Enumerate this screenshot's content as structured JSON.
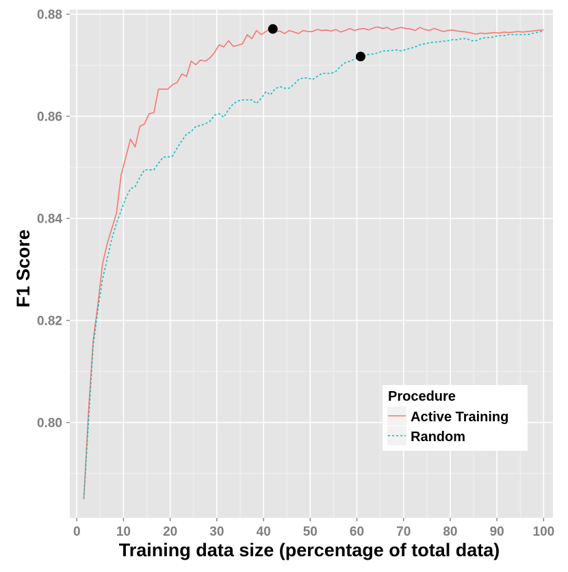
{
  "chart_data": {
    "type": "line",
    "xlabel": "Training data size (percentage of total data)",
    "ylabel": "F1 Score",
    "xlim": [
      -1.5,
      102
    ],
    "ylim": [
      0.7813,
      0.8809
    ],
    "x_ticks": [
      0,
      10,
      20,
      30,
      40,
      50,
      60,
      70,
      80,
      90,
      100
    ],
    "x_tick_labels": [
      "0",
      "10",
      "20",
      "30",
      "40",
      "50",
      "60",
      "70",
      "80",
      "90",
      "100"
    ],
    "y_ticks": [
      0.8,
      0.82,
      0.84,
      0.86,
      0.88
    ],
    "y_tick_labels": [
      "0.80",
      "0.82",
      "0.84",
      "0.86",
      "0.88"
    ],
    "grid": true,
    "panel_background": "#e5e5e5",
    "grid_color": "#ffffff",
    "legend": {
      "title": "Procedure",
      "position": "bottom-right"
    },
    "series": [
      {
        "name": "Active Training",
        "color": "#f8766d",
        "dash": "solid",
        "x": [
          1.5,
          2.5,
          3.5,
          4.5,
          5.5,
          6.5,
          7.5,
          8.5,
          9.5,
          10.5,
          11.5,
          12.5,
          13.5,
          14.5,
          15.5,
          16.5,
          17.5,
          18.5,
          19.5,
          20.5,
          21.5,
          22.5,
          23.5,
          24.5,
          25.5,
          26.5,
          27.5,
          28.5,
          29.5,
          30.5,
          31.5,
          32.5,
          33.5,
          34.5,
          35.5,
          36.5,
          37.5,
          38.5,
          39.5,
          40.5,
          41.5,
          42.5,
          43.5,
          44.5,
          45.5,
          46.5,
          47.5,
          48.5,
          49.5,
          50.5,
          51.5,
          52.5,
          53.5,
          54.5,
          55.5,
          56.5,
          57.5,
          58.5,
          59.5,
          60.5,
          61.5,
          62.5,
          63.5,
          64.5,
          65.5,
          66.5,
          67.5,
          68.5,
          69.5,
          70.5,
          71.5,
          72.5,
          73.5,
          74.5,
          75.5,
          76.5,
          77.5,
          78.5,
          79.5,
          80.5,
          81.5,
          82.5,
          83.5,
          84.5,
          85.5,
          86.5,
          87.5,
          88.5,
          89.5,
          90.5,
          91.5,
          92.5,
          93.5,
          94.5,
          95.5,
          96.5,
          97.5,
          98.5,
          99.5,
          100
        ],
        "y": [
          0.785,
          0.802,
          0.816,
          0.823,
          0.831,
          0.835,
          0.838,
          0.841,
          0.8485,
          0.852,
          0.8555,
          0.854,
          0.858,
          0.8585,
          0.8605,
          0.8607,
          0.8653,
          0.8653,
          0.8653,
          0.8662,
          0.8666,
          0.8683,
          0.8678,
          0.8708,
          0.8701,
          0.871,
          0.8708,
          0.8714,
          0.8725,
          0.874,
          0.8736,
          0.8748,
          0.8737,
          0.8739,
          0.8742,
          0.876,
          0.8752,
          0.8768,
          0.876,
          0.8766,
          0.8772,
          0.8766,
          0.8767,
          0.8762,
          0.8768,
          0.8765,
          0.8762,
          0.8768,
          0.8766,
          0.8766,
          0.877,
          0.8768,
          0.8769,
          0.8767,
          0.877,
          0.8765,
          0.8768,
          0.8772,
          0.8768,
          0.8771,
          0.8772,
          0.8769,
          0.8773,
          0.8775,
          0.8772,
          0.8774,
          0.8769,
          0.8772,
          0.8774,
          0.8772,
          0.8771,
          0.8768,
          0.8774,
          0.877,
          0.8768,
          0.8772,
          0.8769,
          0.8766,
          0.8768,
          0.8769,
          0.8767,
          0.8766,
          0.8765,
          0.8763,
          0.8761,
          0.8763,
          0.8762,
          0.8763,
          0.8764,
          0.8763,
          0.8765,
          0.8764,
          0.8765,
          0.8766,
          0.8765,
          0.8766,
          0.8767,
          0.8768,
          0.8769,
          0.8769
        ]
      },
      {
        "name": "Random",
        "color": "#00bfc4",
        "dash": "dotted",
        "x": [
          1.5,
          2.5,
          3.5,
          4.5,
          5.5,
          6.5,
          7.5,
          8.5,
          9.5,
          10.5,
          11.5,
          12.5,
          13.5,
          14.5,
          15.5,
          16.5,
          17.5,
          18.5,
          19.5,
          20.5,
          21.5,
          22.5,
          23.5,
          24.5,
          25.5,
          26.5,
          27.5,
          28.5,
          29.5,
          30.5,
          31.5,
          32.5,
          33.5,
          34.5,
          35.5,
          36.5,
          37.5,
          38.5,
          39.5,
          40.5,
          41.5,
          42.5,
          43.5,
          44.5,
          45.5,
          46.5,
          47.5,
          48.5,
          49.5,
          50.5,
          51.5,
          52.5,
          53.5,
          54.5,
          55.5,
          56.5,
          57.5,
          58.5,
          59.5,
          60.5,
          61.5,
          62.5,
          63.5,
          64.5,
          65.5,
          66.5,
          67.5,
          68.5,
          69.5,
          70.5,
          71.5,
          72.5,
          73.5,
          74.5,
          75.5,
          76.5,
          77.5,
          78.5,
          79.5,
          80.5,
          81.5,
          82.5,
          83.5,
          84.5,
          85.5,
          86.5,
          87.5,
          88.5,
          89.5,
          90.5,
          91.5,
          92.5,
          93.5,
          94.5,
          95.5,
          96.5,
          97.5,
          98.5,
          99.5,
          100
        ],
        "y": [
          0.785,
          0.8,
          0.815,
          0.822,
          0.828,
          0.832,
          0.836,
          0.839,
          0.8415,
          0.844,
          0.8458,
          0.8462,
          0.848,
          0.8495,
          0.8495,
          0.8495,
          0.8508,
          0.852,
          0.852,
          0.8522,
          0.8538,
          0.8552,
          0.8565,
          0.857,
          0.858,
          0.8582,
          0.8585,
          0.859,
          0.8602,
          0.8605,
          0.8598,
          0.8613,
          0.8624,
          0.863,
          0.8632,
          0.8632,
          0.8632,
          0.8625,
          0.8635,
          0.8648,
          0.8642,
          0.8654,
          0.8658,
          0.8655,
          0.8655,
          0.8662,
          0.8672,
          0.8675,
          0.8675,
          0.8672,
          0.8678,
          0.8684,
          0.8684,
          0.8684,
          0.8688,
          0.8698,
          0.8705,
          0.8708,
          0.8712,
          0.8715,
          0.8718,
          0.8721,
          0.8722,
          0.8724,
          0.8728,
          0.8728,
          0.8729,
          0.873,
          0.8728,
          0.8731,
          0.8733,
          0.8736,
          0.874,
          0.8742,
          0.8744,
          0.8745,
          0.8746,
          0.8747,
          0.8748,
          0.875,
          0.875,
          0.8752,
          0.8752,
          0.8748,
          0.8748,
          0.8752,
          0.8754,
          0.8754,
          0.8756,
          0.8758,
          0.8758,
          0.876,
          0.876,
          0.876,
          0.876,
          0.876,
          0.8762,
          0.8764,
          0.8766,
          0.8768
        ]
      }
    ],
    "markers": [
      {
        "x": 42,
        "y": 0.8771,
        "color": "#000000"
      },
      {
        "x": 60.8,
        "y": 0.8717,
        "color": "#000000"
      }
    ]
  }
}
